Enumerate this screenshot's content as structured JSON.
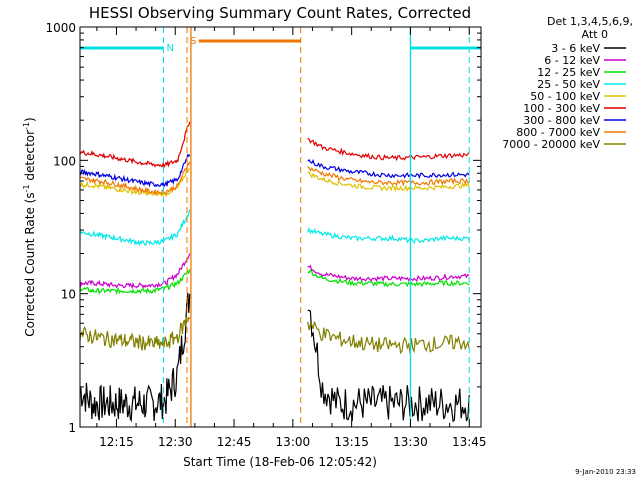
{
  "chart_data": {
    "type": "line",
    "title": "HESSI Observing Summary Count Rates, Corrected",
    "xlabel": "Start Time (18-Feb-06 12:05:42)",
    "ylabel_main": "Corrected Count Rate (s",
    "ylabel_sup1": "-1",
    "ylabel_mid": " detector",
    "ylabel_sup2": "-1",
    "ylabel_end": ")",
    "y_scale": "log",
    "ylim": [
      1,
      1000
    ],
    "xlim_minutes": [
      725.7,
      828
    ],
    "x_tick_labels": [
      "12:15",
      "12:30",
      "12:45",
      "13:00",
      "13:15",
      "13:30",
      "13:45"
    ],
    "x_tick_minutes": [
      735,
      750,
      765,
      780,
      795,
      810,
      825
    ],
    "y_tick_labels": [
      "1",
      "10",
      "100",
      "1000"
    ],
    "y_tick_values": [
      1,
      10,
      100,
      1000
    ],
    "legend_header": [
      "Det 1,3,4,5,6,9,",
      "Att 0"
    ],
    "legend_placement": "right",
    "data_gap_minutes": [
      754,
      783
    ],
    "series": [
      {
        "name": "3 - 6 keV",
        "color": "#000000",
        "pre": [
          1.9,
          1.5,
          1.5,
          1.5,
          1.5,
          1.5,
          1.5,
          1.6,
          2.5,
          10
        ],
        "post": [
          10,
          2.0,
          1.5,
          1.5,
          1.5,
          1.5,
          1.5,
          1.5,
          1.5,
          1.5,
          1.5,
          1.5
        ]
      },
      {
        "name": "6 - 12 keV",
        "color": "#cc00cc",
        "pre": [
          12,
          12,
          11.8,
          11.5,
          11.5,
          11.5,
          11.6,
          12,
          14,
          20
        ],
        "post": [
          16,
          14,
          13.5,
          13,
          13,
          13,
          13,
          13,
          13,
          13.2,
          13.5,
          13.5
        ]
      },
      {
        "name": "12 - 25 keV",
        "color": "#00e000",
        "pre": [
          11,
          10.5,
          10.5,
          10.5,
          10.5,
          10.5,
          10.5,
          11,
          12,
          15
        ],
        "post": [
          15,
          13,
          12.5,
          12,
          12,
          11.8,
          11.8,
          11.8,
          11.8,
          12,
          12,
          12
        ]
      },
      {
        "name": "25 - 50 keV",
        "color": "#00e8e8",
        "pre": [
          29,
          28,
          27,
          26,
          25,
          24,
          24,
          25,
          28,
          42
        ],
        "post": [
          30,
          28,
          27,
          26,
          26,
          26,
          26,
          25,
          25,
          26,
          26,
          26
        ]
      },
      {
        "name": "50 - 100 keV",
        "color": "#e0c000",
        "pre": [
          66,
          65,
          63,
          61,
          59,
          57,
          56,
          56,
          62,
          90
        ],
        "post": [
          80,
          72,
          68,
          65,
          63,
          62,
          62,
          62,
          62,
          63,
          64,
          65
        ]
      },
      {
        "name": "100 - 300 keV",
        "color": "#e00000",
        "pre": [
          115,
          112,
          108,
          104,
          100,
          96,
          93,
          92,
          100,
          200
        ],
        "post": [
          145,
          125,
          118,
          112,
          108,
          105,
          104,
          105,
          106,
          108,
          109,
          110
        ]
      },
      {
        "name": "300 - 800 keV",
        "color": "#0000e0",
        "pre": [
          82,
          80,
          77,
          74,
          71,
          68,
          66,
          66,
          72,
          115
        ],
        "post": [
          100,
          90,
          86,
          82,
          80,
          78,
          77,
          77,
          77,
          78,
          78,
          78
        ]
      },
      {
        "name": "800 - 7000 keV",
        "color": "#f07800",
        "pre": [
          73,
          71,
          69,
          66,
          63,
          60,
          58,
          58,
          64,
          100
        ],
        "post": [
          88,
          80,
          75,
          71,
          69,
          68,
          68,
          68,
          68,
          69,
          70,
          70
        ]
      },
      {
        "name": "7000 - 20000 keV",
        "color": "#808000",
        "pre": [
          5,
          4.8,
          4.6,
          4.5,
          4.4,
          4.3,
          4.2,
          4.2,
          4.8,
          7
        ],
        "post": [
          6,
          5,
          4.6,
          4.4,
          4.2,
          4.1,
          4.1,
          4.1,
          4.2,
          4.2,
          4.3,
          4.3
        ]
      }
    ],
    "flags": [
      {
        "label": "N",
        "color": "#00e0e0",
        "bars_minutes": [
          [
            725.7,
            747
          ],
          [
            810,
            828
          ]
        ],
        "line_minutes": [
          747,
          825
        ]
      },
      {
        "label": "S",
        "color": "#f07800",
        "bars_minutes": [
          [
            756,
            782
          ]
        ],
        "line_minutes": [
          753,
          782
        ]
      }
    ],
    "solid_lines_minutes": [
      {
        "minute": 754,
        "color": "#f07800"
      },
      {
        "minute": 810,
        "color": "#00e0e0"
      }
    ]
  },
  "footer": {
    "date_stamp": "9-Jan-2010 23:33"
  }
}
